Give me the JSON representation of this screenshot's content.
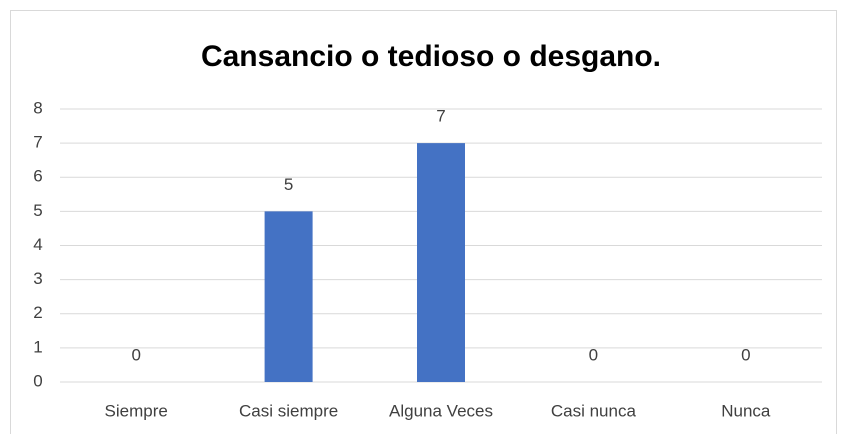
{
  "chart_data": {
    "type": "bar",
    "title": "Cansancio o tedioso o desgano.",
    "categories": [
      "Siempre",
      "Casi siempre",
      "Alguna Veces",
      "Casi nunca",
      "Nunca"
    ],
    "values": [
      0,
      5,
      7,
      0,
      0
    ],
    "color": "#4472c4",
    "ylim": [
      0,
      8
    ],
    "yticks": [
      0,
      1,
      2,
      3,
      4,
      5,
      6,
      7,
      8
    ],
    "grid": true
  }
}
